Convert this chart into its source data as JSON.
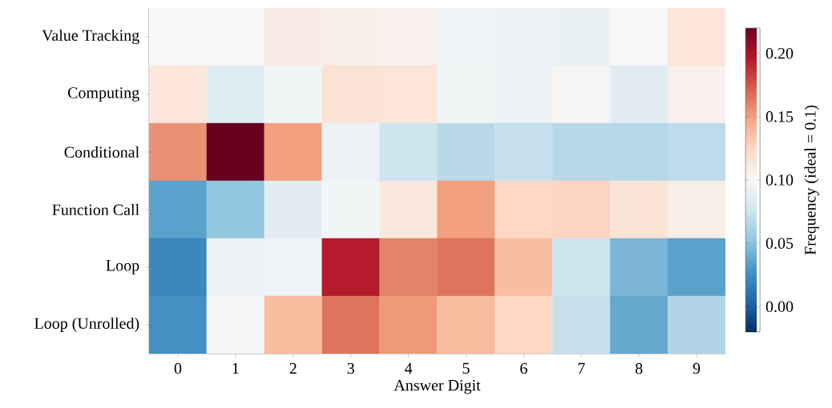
{
  "chart_data": {
    "type": "heatmap",
    "xlabel": "Answer Digit",
    "clabel": "Frequency (ideal = 0.1)",
    "categories": [
      "0",
      "1",
      "2",
      "3",
      "4",
      "5",
      "6",
      "7",
      "8",
      "9"
    ],
    "y_categories": [
      "Value Tracking",
      "Computing",
      "Conditional",
      "Function Call",
      "Loop",
      "Loop (Unrolled)"
    ],
    "cells": [
      [
        0.1,
        0.1,
        0.11,
        0.107,
        0.105,
        0.095,
        0.094,
        0.092,
        0.1,
        0.115
      ],
      [
        0.115,
        0.085,
        0.097,
        0.117,
        0.115,
        0.097,
        0.093,
        0.102,
        0.087,
        0.105
      ],
      [
        0.155,
        0.22,
        0.15,
        0.093,
        0.075,
        0.067,
        0.072,
        0.066,
        0.066,
        0.069
      ],
      [
        0.035,
        0.052,
        0.087,
        0.097,
        0.113,
        0.15,
        0.125,
        0.127,
        0.117,
        0.108
      ],
      [
        0.022,
        0.094,
        0.095,
        0.195,
        0.16,
        0.165,
        0.137,
        0.075,
        0.045,
        0.035
      ],
      [
        0.027,
        0.099,
        0.138,
        0.165,
        0.152,
        0.138,
        0.125,
        0.072,
        0.038,
        0.064
      ]
    ],
    "clim": [
      -0.02,
      0.22
    ],
    "cticks": [
      {
        "value": 0.0,
        "label": "0.00"
      },
      {
        "value": 0.05,
        "label": "0.05"
      },
      {
        "value": 0.1,
        "label": "0.10"
      },
      {
        "value": 0.15,
        "label": "0.15"
      },
      {
        "value": 0.2,
        "label": "0.20"
      }
    ]
  }
}
